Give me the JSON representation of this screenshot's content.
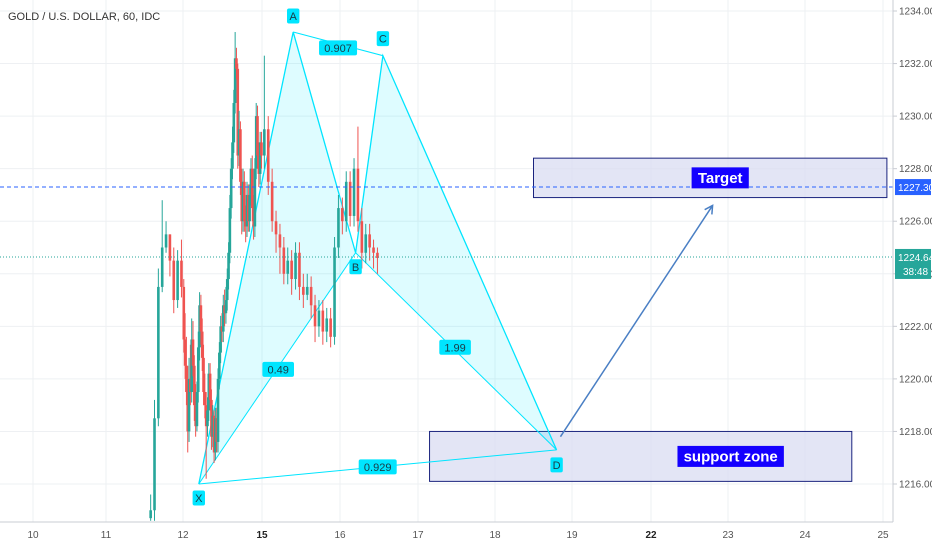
{
  "header": {
    "symbol_title": "GOLD / U.S. DOLLAR, 60, IDC"
  },
  "chart_data": {
    "type": "candlestick",
    "title": "GOLD / U.S. DOLLAR, 60, IDC",
    "ylim": [
      1214.5,
      1235
    ],
    "y_ticks": [
      "1216.00",
      "1218.00",
      "1220.00",
      "1222.00",
      "1224.00",
      "1226.00",
      "1228.00",
      "1230.00",
      "1232.00",
      "1234.00"
    ],
    "x_ticks": [
      "10",
      "11",
      "12",
      "15",
      "16",
      "17",
      "18",
      "19",
      "22",
      "23",
      "24",
      "25"
    ],
    "bold_x_ticks": [
      "15",
      "22"
    ],
    "grid": true,
    "colors": {
      "up": "#26a69a",
      "down": "#ef5350",
      "pattern": "#00e5ff",
      "zone_fill": "#d9dcf1",
      "zone_border": "#1a237e",
      "arrow": "#4a7fc4",
      "price_line": "#2962ff",
      "current_line": "#26a69a"
    },
    "price_levels": {
      "dashed_line": {
        "value": 1227.3,
        "label": "1227.30"
      },
      "current_price": {
        "value": 1224.64,
        "label": "1224.64",
        "countdown": "38:48"
      }
    },
    "harmonic_pattern": {
      "points": [
        {
          "label": "X",
          "x": 12.6,
          "price": 1216.0
        },
        {
          "label": "A",
          "x": 15.4,
          "price": 1233.2
        },
        {
          "label": "B",
          "x": 16.2,
          "price": 1224.8
        },
        {
          "label": "C",
          "x": 16.55,
          "price": 1232.3
        },
        {
          "label": "D",
          "x": 18.8,
          "price": 1217.3
        }
      ],
      "ratios": [
        {
          "label": "0.907",
          "between": "A-C"
        },
        {
          "label": "0.49",
          "between": "X-B"
        },
        {
          "label": "1.99",
          "between": "B-D"
        },
        {
          "label": "0.929",
          "between": "X-D"
        }
      ]
    },
    "zones": [
      {
        "label": "Target",
        "x_from": 18.5,
        "x_to": 25.05,
        "price_from": 1226.9,
        "price_to": 1228.4
      },
      {
        "label": "support zone",
        "x_from": 17.15,
        "x_to": 24.6,
        "price_from": 1216.1,
        "price_to": 1218.0
      }
    ],
    "arrow": {
      "from": {
        "x": 18.85,
        "price": 1217.8
      },
      "to": {
        "x": 22.8,
        "price": 1226.6
      }
    },
    "candles": {
      "start_x": 11.58,
      "step": 0.05,
      "close": [
        1215.0,
        1218.5,
        1223.5,
        1225.0,
        1225.5,
        1224.5,
        1223.0,
        1224.5,
        1223.5,
        1221.5,
        1220.5,
        1219.5,
        1218.0,
        1220.0,
        1219.5,
        1221.5,
        1220.5,
        1219.0,
        1218.2,
        1219.5,
        1221.2,
        1222.8,
        1221.8,
        1220.8,
        1219.5,
        1219.0,
        1218.2,
        1218.8,
        1220.2,
        1219.2,
        1217.8,
        1218.6,
        1217.2,
        1218.5,
        1217.6,
        1220.0,
        1221.0,
        1222.0,
        1221.8,
        1222.8,
        1222.5,
        1223.0,
        1223.8,
        1224.8,
        1226.5,
        1228.0,
        1229.0,
        1230.5,
        1232.2,
        1231.8,
        1228.5,
        1229.5,
        1227.5,
        1226.0,
        1227.5,
        1226.0,
        1225.8,
        1227.0,
        1226.0,
        1227.0,
        1228.0,
        1226.5,
        1225.8,
        1228.0,
        1230.0,
        1228.5,
        1227.8,
        1229.0,
        1228.5,
        1229.5,
        1227.5,
        1226.0,
        1225.5,
        1225.0,
        1224.0,
        1224.5,
        1223.8,
        1224.8,
        1223.5,
        1223.2,
        1223.5,
        1222.8,
        1222.0,
        1222.6,
        1221.8,
        1222.3,
        1221.6,
        1225.0,
        1226.5,
        1226.0,
        1227.5,
        1226.2,
        1228.0,
        1226.0,
        1224.8,
        1225.5,
        1225.0,
        1224.8,
        1224.6
      ],
      "high": [
        1215.6,
        1219.2,
        1224.2,
        1226.8,
        1226.0,
        1225.5,
        1225.0,
        1224.9,
        1225.3,
        1223.8,
        1222.5,
        1221.6,
        1220.5,
        1220.8,
        1221.3,
        1222.3,
        1222.2,
        1220.9,
        1219.8,
        1219.9,
        1221.8,
        1223.3,
        1223.2,
        1222.3,
        1221.3,
        1220.2,
        1219.5,
        1219.3,
        1220.6,
        1220.6,
        1219.6,
        1219.0,
        1218.8,
        1218.9,
        1218.9,
        1220.4,
        1221.4,
        1222.4,
        1222.5,
        1223.2,
        1223.4,
        1223.5,
        1224.2,
        1225.2,
        1227.0,
        1228.4,
        1229.6,
        1231.0,
        1233.2,
        1232.6,
        1232.0,
        1230.2,
        1229.8,
        1228.0,
        1228.0,
        1227.9,
        1226.6,
        1227.5,
        1227.4,
        1227.4,
        1228.4,
        1228.5,
        1227.0,
        1228.4,
        1230.5,
        1230.4,
        1229.0,
        1229.4,
        1229.4,
        1232.3,
        1230.0,
        1228.0,
        1226.4,
        1225.9,
        1225.4,
        1225.0,
        1224.9,
        1225.2,
        1225.2,
        1224.0,
        1224.0,
        1223.9,
        1223.2,
        1223.0,
        1223.0,
        1222.7,
        1222.7,
        1225.4,
        1227.0,
        1226.9,
        1227.9,
        1227.9,
        1228.4,
        1229.6,
        1226.5,
        1225.9,
        1225.9,
        1225.3,
        1225.0
      ],
      "low": [
        1214.6,
        1214.6,
        1218.2,
        1223.3,
        1224.8,
        1223.9,
        1222.5,
        1222.7,
        1223.1,
        1221.0,
        1220.0,
        1219.0,
        1217.2,
        1217.6,
        1219.0,
        1219.1,
        1220.1,
        1218.4,
        1217.8,
        1218.0,
        1219.1,
        1220.7,
        1221.3,
        1220.3,
        1219.0,
        1218.5,
        1216.2,
        1217.8,
        1218.4,
        1218.8,
        1217.3,
        1217.4,
        1216.8,
        1216.9,
        1217.2,
        1217.2,
        1219.6,
        1220.6,
        1221.4,
        1221.4,
        1222.0,
        1222.1,
        1222.6,
        1223.4,
        1224.4,
        1226.1,
        1227.6,
        1228.6,
        1230.1,
        1231.4,
        1228.0,
        1228.1,
        1227.0,
        1225.5,
        1225.6,
        1225.6,
        1225.2,
        1225.4,
        1225.6,
        1225.6,
        1226.6,
        1226.0,
        1225.3,
        1225.4,
        1227.6,
        1228.0,
        1227.3,
        1227.4,
        1228.0,
        1228.0,
        1227.0,
        1225.6,
        1224.8,
        1224.0,
        1223.6,
        1223.6,
        1223.2,
        1223.4,
        1223.0,
        1222.7,
        1223.0,
        1222.3,
        1221.4,
        1221.6,
        1221.3,
        1221.4,
        1221.2,
        1221.3,
        1224.6,
        1225.5,
        1225.6,
        1225.8,
        1225.8,
        1225.6,
        1224.2,
        1224.4,
        1224.5,
        1224.2,
        1224.0
      ]
    }
  }
}
